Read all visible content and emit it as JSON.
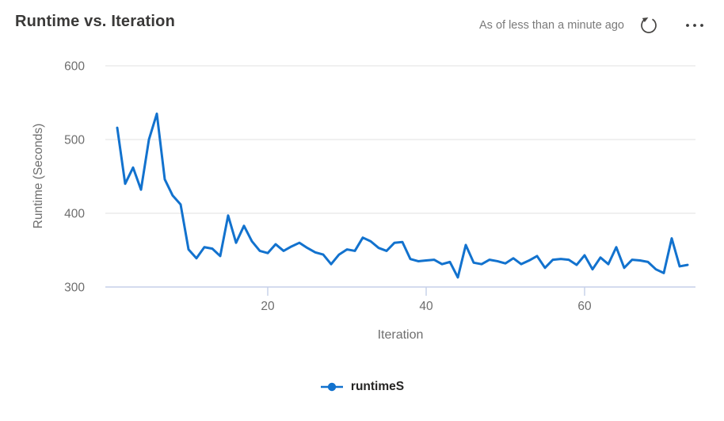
{
  "header": {
    "title": "Runtime vs. Iteration",
    "freshness": "As of less than a minute ago"
  },
  "icons": {
    "refresh": "refresh-circular-arrow",
    "more": "ellipsis-horizontal",
    "legend_marker": "line-with-dot"
  },
  "colors": {
    "line": "#1272CE",
    "grid": "#ececec",
    "axis": "#c5cfe8",
    "tick_text": "#6e6e6e",
    "title_text": "#3a3938",
    "muted_text": "#7a7a7a",
    "icon": "#474543",
    "legend_text": "#252423"
  },
  "chart_data": {
    "type": "line",
    "title": "Runtime vs. Iteration",
    "xlabel": "Iteration",
    "ylabel": "Runtime (Seconds)",
    "x_ticks": [
      20,
      40,
      60
    ],
    "y_ticks": [
      300,
      400,
      500,
      600
    ],
    "xlim": [
      1,
      75
    ],
    "ylim": [
      300,
      600
    ],
    "grid": "horizontal-only",
    "legend_position": "bottom-center",
    "series": [
      {
        "name": "runtimeS",
        "color": "#1272CE",
        "x": [
          1,
          2,
          3,
          4,
          5,
          6,
          7,
          8,
          9,
          10,
          11,
          12,
          13,
          14,
          15,
          16,
          17,
          18,
          19,
          20,
          21,
          22,
          23,
          24,
          25,
          26,
          27,
          28,
          29,
          30,
          31,
          32,
          33,
          34,
          35,
          36,
          37,
          38,
          39,
          40,
          41,
          42,
          43,
          44,
          45,
          46,
          47,
          48,
          49,
          50,
          51,
          52,
          53,
          54,
          55,
          56,
          57,
          58,
          59,
          60,
          61,
          62,
          63,
          64,
          65,
          66,
          67,
          68,
          69,
          70,
          71,
          72,
          73
        ],
        "y": [
          516,
          440,
          462,
          432,
          500,
          535,
          446,
          424,
          412,
          351,
          339,
          354,
          352,
          342,
          397,
          360,
          383,
          362,
          349,
          346,
          358,
          349,
          355,
          360,
          353,
          347,
          344,
          331,
          344,
          351,
          349,
          367,
          362,
          353,
          349,
          360,
          361,
          338,
          335,
          336,
          337,
          331,
          334,
          313,
          357,
          333,
          331,
          337,
          335,
          332,
          339,
          331,
          336,
          342,
          326,
          337,
          338,
          337,
          330,
          343,
          324,
          340,
          331,
          354,
          326,
          337,
          336,
          334,
          324,
          319,
          366,
          328,
          330
        ]
      }
    ]
  }
}
